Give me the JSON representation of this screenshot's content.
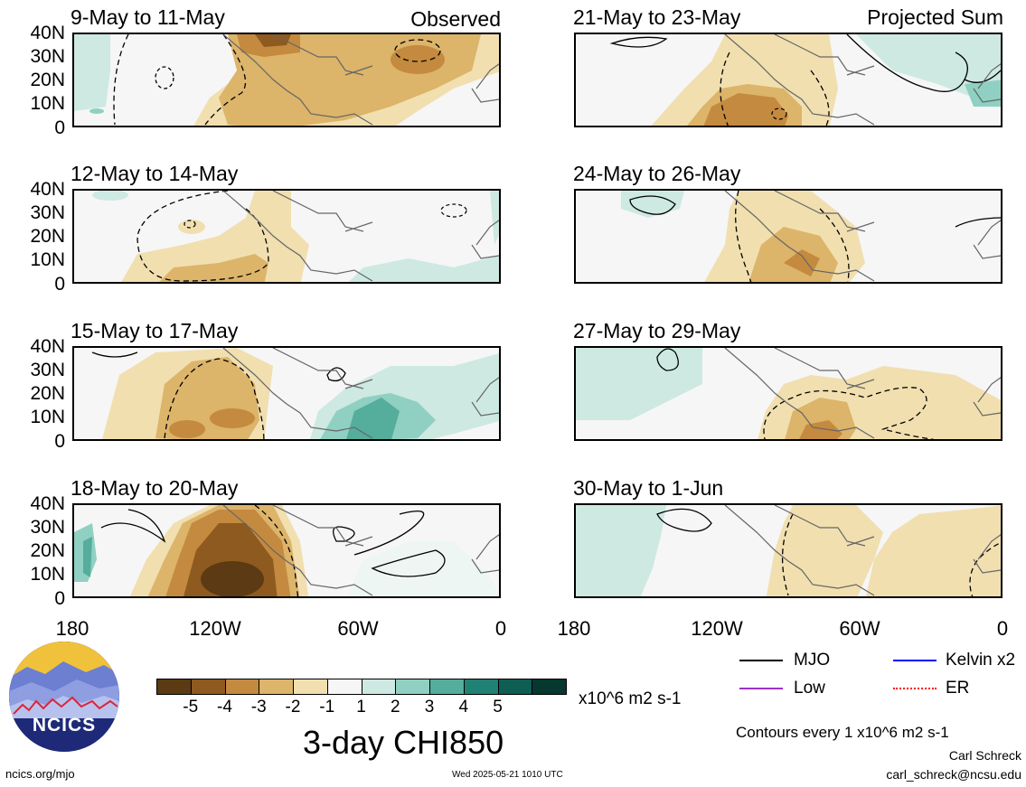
{
  "panels": [
    {
      "title": "9-May to 11-May",
      "corner": "Observed"
    },
    {
      "title": "12-May to 14-May",
      "corner": ""
    },
    {
      "title": "15-May to 17-May",
      "corner": ""
    },
    {
      "title": "18-May to 20-May",
      "corner": ""
    },
    {
      "title": "21-May to 23-May",
      "corner": "Projected Sum"
    },
    {
      "title": "24-May to 26-May",
      "corner": ""
    },
    {
      "title": "27-May to 29-May",
      "corner": ""
    },
    {
      "title": "30-May to 1-Jun",
      "corner": ""
    }
  ],
  "lat_labels": [
    "40N",
    "30N",
    "20N",
    "10N",
    "0"
  ],
  "lon_labels": [
    "180",
    "120W",
    "60W",
    "0"
  ],
  "colorbar": {
    "colors": [
      "#5c3a13",
      "#8e5a1f",
      "#c48a3f",
      "#dcb46a",
      "#f1dfb0",
      "#f6f6f6",
      "#cde9e2",
      "#8fd0c2",
      "#55ad9c",
      "#1f8274",
      "#0f5e54",
      "#06382f"
    ],
    "tick_labels": [
      "-5",
      "-4",
      "-3",
      "-2",
      "-1",
      "1",
      "2",
      "3",
      "4",
      "5"
    ],
    "units": "x10^6 m2 s-1"
  },
  "legend": [
    {
      "label": "MJO",
      "color": "#000000"
    },
    {
      "label": "Kelvin x2",
      "color": "#0000ff"
    },
    {
      "label": "Low",
      "color": "#9932cc"
    },
    {
      "label": "ER",
      "color": "#ff0000"
    }
  ],
  "field_title": "3-day CHI850",
  "contour_note": "Contours every 1 x10^6 m2 s-1",
  "author": "Carl Schreck",
  "email": "carl_schreck@ncsu.edu",
  "website": "ncics.org/mjo",
  "timestamp": "Wed 2025-05-21 1010 UTC",
  "logo_text": "NCICS"
}
